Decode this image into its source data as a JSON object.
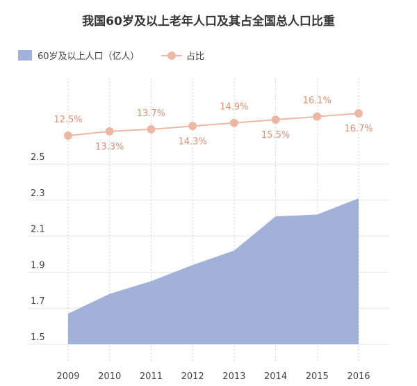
{
  "chart_data": {
    "type": "area",
    "title": "我国60岁及以上老年人口及其占全国总人口比重",
    "categories": [
      "2009",
      "2010",
      "2011",
      "2012",
      "2013",
      "2014",
      "2015",
      "2016"
    ],
    "series": [
      {
        "name": "60岁及以上人口（亿人）",
        "type": "area",
        "values": [
          1.67,
          1.78,
          1.85,
          1.94,
          2.02,
          2.21,
          2.22,
          2.31
        ],
        "color": "#a2b1d8"
      },
      {
        "name": "占比",
        "type": "line",
        "values": [
          12.5,
          13.3,
          13.7,
          14.3,
          14.9,
          15.5,
          16.1,
          16.7
        ],
        "labels": [
          "12.5%",
          "13.3%",
          "13.7%",
          "14.3%",
          "14.9%",
          "15.5%",
          "16.1%",
          "16.7%"
        ],
        "color": "#ebb8a4",
        "label_color": "#dd8f73"
      }
    ],
    "yticks": [
      "1.5",
      "1.7",
      "1.9",
      "2.1",
      "2.3",
      "2.5"
    ],
    "ylim": [
      1.5,
      2.5
    ],
    "grid": true,
    "legend": "top-left"
  }
}
